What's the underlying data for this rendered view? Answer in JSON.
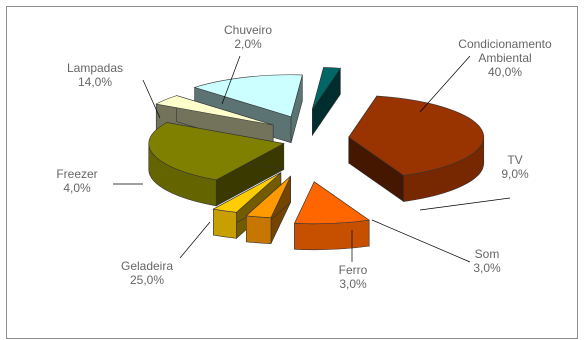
{
  "chart_data": {
    "type": "pie",
    "style": "3d-exploded",
    "title": "",
    "categories": [
      "Condicionamento Ambiental",
      "TV",
      "Som",
      "Ferro",
      "Geladeira",
      "Freezer",
      "Lampadas",
      "Chuveiro"
    ],
    "values": [
      40.0,
      9.0,
      3.0,
      3.0,
      25.0,
      4.0,
      14.0,
      2.0
    ],
    "units": "%",
    "slices": [
      {
        "label_lines": [
          "Condicionamento",
          "Ambiental"
        ],
        "value_text": "40,0%",
        "color": "#993300"
      },
      {
        "label_lines": [
          "TV"
        ],
        "value_text": "9,0%",
        "color": "#ff6600"
      },
      {
        "label_lines": [
          "Som"
        ],
        "value_text": "3,0%",
        "color": "#ff9900"
      },
      {
        "label_lines": [
          "Ferro"
        ],
        "value_text": "3,0%",
        "color": "#ffcc00"
      },
      {
        "label_lines": [
          "Geladeira"
        ],
        "value_text": "25,0%",
        "color": "#808000"
      },
      {
        "label_lines": [
          "Freezer"
        ],
        "value_text": "4,0%",
        "color": "#ffffcc"
      },
      {
        "label_lines": [
          "Lampadas"
        ],
        "value_text": "14,0%",
        "color": "#ccffff"
      },
      {
        "label_lines": [
          "Chuveiro"
        ],
        "value_text": "2,0%",
        "color": "#006666"
      }
    ],
    "label_color": "#666666",
    "leader_line_color": "#000000",
    "legend": "none"
  }
}
